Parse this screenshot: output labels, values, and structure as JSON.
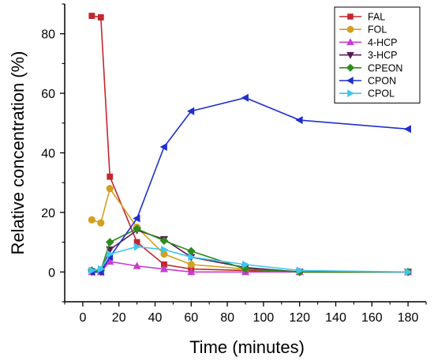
{
  "chart_data": {
    "type": "line",
    "xlabel": "Time (minutes)",
    "ylabel": "Relative concentration (%)",
    "xlim": [
      -10,
      190
    ],
    "ylim": [
      -10,
      90
    ],
    "xticks": [
      0,
      20,
      40,
      60,
      80,
      100,
      120,
      140,
      160,
      180
    ],
    "yticks": [
      0,
      20,
      40,
      60,
      80
    ],
    "legend_position": "top-right",
    "series": [
      {
        "name": "FAL",
        "color": "#c1272d",
        "marker": "square",
        "points": [
          [
            5,
            86
          ],
          [
            10,
            85.5
          ],
          [
            15,
            32
          ],
          [
            30,
            10
          ],
          [
            45,
            2.5
          ],
          [
            60,
            1
          ],
          [
            90,
            0.5
          ],
          [
            120,
            0
          ],
          [
            180,
            0
          ]
        ]
      },
      {
        "name": "FOL",
        "color": "#d4a020",
        "marker": "circle",
        "points": [
          [
            5,
            17.5
          ],
          [
            10,
            16.5
          ],
          [
            15,
            28
          ],
          [
            30,
            15
          ],
          [
            45,
            6
          ],
          [
            60,
            2.5
          ],
          [
            90,
            1
          ],
          [
            120,
            0
          ],
          [
            180,
            0
          ]
        ]
      },
      {
        "name": "4-HCP",
        "color": "#c83ccf",
        "marker": "triangle-up",
        "points": [
          [
            5,
            0
          ],
          [
            10,
            0
          ],
          [
            15,
            3.5
          ],
          [
            30,
            2
          ],
          [
            45,
            1
          ],
          [
            60,
            0
          ],
          [
            90,
            0
          ],
          [
            120,
            0
          ],
          [
            180,
            0
          ]
        ]
      },
      {
        "name": "3-HCP",
        "color": "#5b1a55",
        "marker": "triangle-down",
        "points": [
          [
            5,
            0
          ],
          [
            10,
            0
          ],
          [
            15,
            7.5
          ],
          [
            30,
            14
          ],
          [
            45,
            11
          ],
          [
            60,
            5
          ],
          [
            90,
            1.5
          ],
          [
            120,
            0
          ],
          [
            180,
            0
          ]
        ]
      },
      {
        "name": "CPEON",
        "color": "#2e8b1d",
        "marker": "diamond",
        "points": [
          [
            5,
            0.5
          ],
          [
            10,
            0.5
          ],
          [
            15,
            10
          ],
          [
            30,
            14.5
          ],
          [
            45,
            10.5
          ],
          [
            60,
            7
          ],
          [
            90,
            1
          ],
          [
            120,
            0
          ],
          [
            180,
            0
          ]
        ]
      },
      {
        "name": "CPON",
        "color": "#1f2fcf",
        "marker": "triangle-left",
        "points": [
          [
            5,
            0
          ],
          [
            10,
            0
          ],
          [
            15,
            5
          ],
          [
            30,
            18
          ],
          [
            45,
            42
          ],
          [
            60,
            54
          ],
          [
            90,
            58.5
          ],
          [
            120,
            51
          ],
          [
            180,
            48
          ]
        ]
      },
      {
        "name": "CPOL",
        "color": "#3ec6ee",
        "marker": "triangle-right",
        "points": [
          [
            5,
            0.5
          ],
          [
            10,
            1
          ],
          [
            15,
            6
          ],
          [
            30,
            8.5
          ],
          [
            45,
            7.5
          ],
          [
            60,
            5
          ],
          [
            90,
            2.5
          ],
          [
            120,
            0.5
          ],
          [
            180,
            0
          ]
        ]
      }
    ]
  }
}
